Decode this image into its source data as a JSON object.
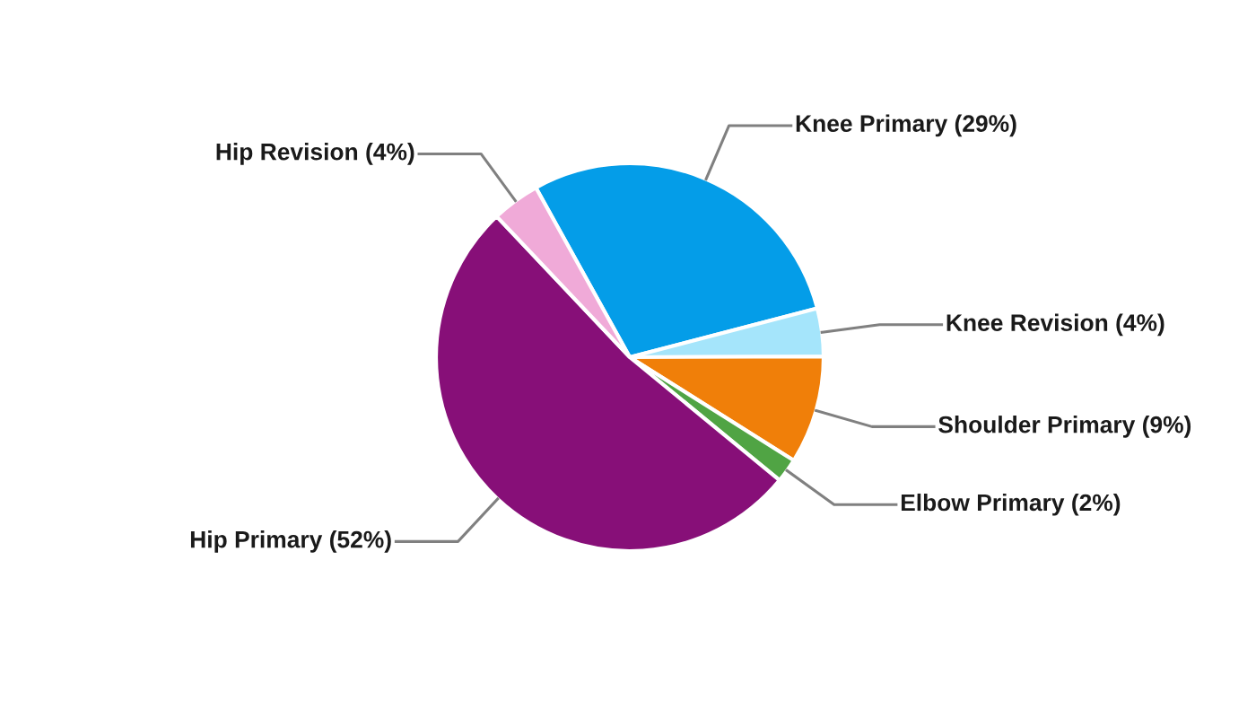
{
  "chart_data": {
    "type": "pie",
    "categories": [
      "Knee Primary",
      "Knee Revision",
      "Shoulder Primary",
      "Elbow Primary",
      "Hip Primary",
      "Hip Revision"
    ],
    "values": [
      29,
      4,
      9,
      2,
      52,
      4
    ],
    "colors": [
      "#049de8",
      "#a5e5fb",
      "#f07f09",
      "#50a444",
      "#870f78",
      "#f0aad8"
    ],
    "value_labels": [
      "(29%)",
      "(4%)",
      "(9%)",
      "(2%)",
      "(52%)",
      "(4%)"
    ]
  }
}
